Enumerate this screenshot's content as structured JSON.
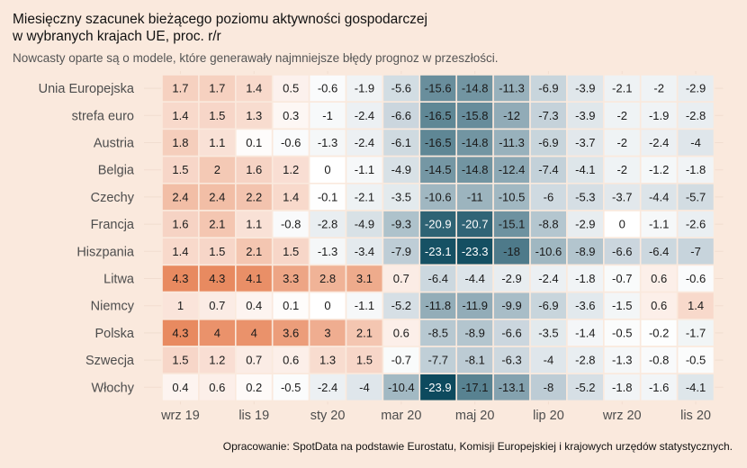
{
  "title_line1": "Miesięczny szacunek bieżącego poziomu aktywności gospodarczej",
  "title_line2": "w wybranych krajach UE, proc. r/r",
  "subtitle": "Nowcasty oparte są o modele, które generawały najmniejsze błędy prognoz w przeszłości.",
  "caption": "Opracowanie: SpotData na podstawie Eurostatu, Komisji Europejskiej i krajowych urzędów statystycznych.",
  "colors": {
    "background": "#fae9dd",
    "neutral": "#ffffff",
    "positive_max": "#e88a60",
    "negative_max": "#0d4a5e"
  },
  "chart_data": {
    "type": "heatmap",
    "title": "Miesięczny szacunek bieżącego poziomu aktywności gospodarczej w wybranych krajach UE, proc. r/r",
    "x_tick_labels": [
      "wrz 19",
      "",
      "lis 19",
      "",
      "sty 20",
      "",
      "mar 20",
      "",
      "maj 20",
      "",
      "lip 20",
      "",
      "wrz 20",
      "",
      "lis 20"
    ],
    "rows": [
      "Unia Europejska",
      "strefa euro",
      "Austria",
      "Belgia",
      "Czechy",
      "Francja",
      "Hiszpania",
      "Litwa",
      "Niemcy",
      "Polska",
      "Szwecja",
      "Włochy"
    ],
    "values": [
      [
        1.7,
        1.7,
        1.4,
        0.5,
        -0.6,
        -1.9,
        -5.6,
        -15.6,
        -14.8,
        -11.3,
        -6.9,
        -3.9,
        -2.1,
        -2,
        -2.9
      ],
      [
        1.4,
        1.5,
        1.3,
        0.3,
        -1,
        -2.4,
        -6.6,
        -16.5,
        -15.8,
        -12,
        -7.3,
        -3.9,
        -2,
        -1.9,
        -2.8
      ],
      [
        1.8,
        1.1,
        0.1,
        -0.6,
        -1.3,
        -2.4,
        -6.1,
        -16.5,
        -14.8,
        -11.3,
        -6.9,
        -3.7,
        -2,
        -2.4,
        -4
      ],
      [
        1.5,
        2,
        1.6,
        1.2,
        0,
        -1.1,
        -4.9,
        -14.5,
        -14.8,
        -12.4,
        -7.4,
        -4.1,
        -2,
        -1.2,
        -1.8
      ],
      [
        2.4,
        2.4,
        2.2,
        1.4,
        -0.1,
        -2.1,
        -3.5,
        -10.6,
        -11,
        -10.5,
        -6,
        -5.3,
        -3.7,
        -4.4,
        -5.7
      ],
      [
        1.6,
        2.1,
        1.1,
        -0.8,
        -2.8,
        -4.9,
        -9.3,
        -20.9,
        -20.7,
        -15.1,
        -8.8,
        -2.9,
        0,
        -1.1,
        -2.6
      ],
      [
        1.4,
        1.5,
        2.1,
        1.5,
        -1.3,
        -3.4,
        -7.9,
        -23.1,
        -23.3,
        -18,
        -10.6,
        -8.9,
        -6.6,
        -6.4,
        -7
      ],
      [
        4.3,
        4.3,
        4.1,
        3.3,
        2.8,
        3.1,
        0.7,
        -6.4,
        -4.4,
        -2.9,
        -2.4,
        -1.8,
        -0.7,
        0.6,
        -0.6
      ],
      [
        1,
        0.7,
        0.4,
        0.1,
        0,
        -1.1,
        -5.2,
        -11.8,
        -11.9,
        -9.9,
        -6.9,
        -3.6,
        -1.5,
        0.6,
        1.4
      ],
      [
        4.3,
        4,
        4,
        3.6,
        3,
        2.1,
        0.6,
        -8.5,
        -8.9,
        -6.6,
        -3.5,
        -1.4,
        -0.5,
        -0.2,
        -1.7
      ],
      [
        1.5,
        1.2,
        0.7,
        0.6,
        1.3,
        1.5,
        -0.7,
        -7.7,
        -8.1,
        -6.3,
        -4,
        -2.8,
        -1.3,
        -0.8,
        -0.5
      ],
      [
        0.4,
        0.6,
        0.2,
        -0.5,
        -2.4,
        -4,
        -10.4,
        -23.9,
        -17.1,
        -13.1,
        -8,
        -5.2,
        -1.8,
        -1.6,
        -4.1
      ]
    ],
    "value_range": [
      -23.9,
      4.3
    ],
    "legend": "none",
    "grid": true
  }
}
